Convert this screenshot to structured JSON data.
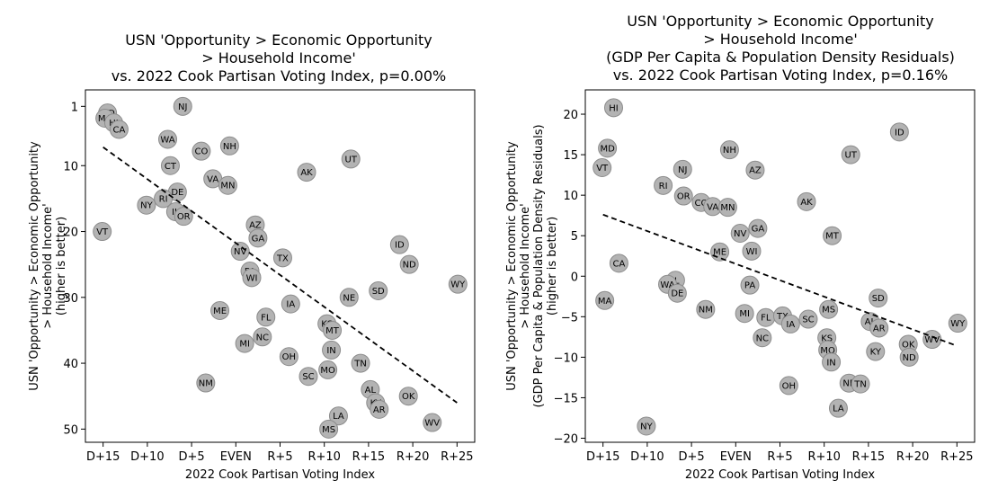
{
  "chart_data": [
    {
      "type": "scatter",
      "title_lines": [
        "USN 'Opportunity > Economic Opportunity",
        "> Household Income'",
        "vs. 2022 Cook Partisan Voting Index, p=0.00%"
      ],
      "xlabel": "2022 Cook Partisan Voting Index",
      "ylabel_lines": [
        "USN 'Opportunity > Economic Opportunity",
        "> Household Income'",
        "(higher is better)"
      ],
      "xlim": [
        -17,
        27
      ],
      "ylim": [
        52,
        -1.5
      ],
      "y_inverted": true,
      "xticks": [
        {
          "value": -15,
          "label": "D+15"
        },
        {
          "value": -10,
          "label": "D+10"
        },
        {
          "value": -5,
          "label": "D+5"
        },
        {
          "value": 0,
          "label": "EVEN"
        },
        {
          "value": 5,
          "label": "R+5"
        },
        {
          "value": 10,
          "label": "R+10"
        },
        {
          "value": 15,
          "label": "R+15"
        },
        {
          "value": 20,
          "label": "R+20"
        },
        {
          "value": 25,
          "label": "R+25"
        }
      ],
      "yticks": [
        {
          "value": 1,
          "label": "1"
        },
        {
          "value": 10,
          "label": "10"
        },
        {
          "value": 20,
          "label": "20"
        },
        {
          "value": 30,
          "label": "30"
        },
        {
          "value": 40,
          "label": "40"
        },
        {
          "value": 50,
          "label": "50"
        }
      ],
      "trendline": {
        "x": [
          -15,
          25
        ],
        "y": [
          7.2,
          46
        ]
      },
      "points": [
        {
          "label": "NJ",
          "x": -6,
          "y": 1
        },
        {
          "label": "MD",
          "x": -14.5,
          "y": 2
        },
        {
          "label": "MA",
          "x": -14.8,
          "y": 2.8
        },
        {
          "label": "HI",
          "x": -13.8,
          "y": 3.5
        },
        {
          "label": "CA",
          "x": -13.2,
          "y": 4.5
        },
        {
          "label": "WA",
          "x": -7.7,
          "y": 6
        },
        {
          "label": "NH",
          "x": -0.7,
          "y": 7
        },
        {
          "label": "CO",
          "x": -3.9,
          "y": 7.8
        },
        {
          "label": "UT",
          "x": 13,
          "y": 9
        },
        {
          "label": "CT",
          "x": -7.4,
          "y": 10
        },
        {
          "label": "AK",
          "x": 8,
          "y": 11
        },
        {
          "label": "VA",
          "x": -2.6,
          "y": 12
        },
        {
          "label": "MN",
          "x": -0.9,
          "y": 13
        },
        {
          "label": "DE",
          "x": -6.6,
          "y": 14
        },
        {
          "label": "RI",
          "x": -8.2,
          "y": 15
        },
        {
          "label": "NY",
          "x": -10.1,
          "y": 16
        },
        {
          "label": "IL",
          "x": -6.8,
          "y": 17
        },
        {
          "label": "OR",
          "x": -5.9,
          "y": 17.7
        },
        {
          "label": "AZ",
          "x": 2.2,
          "y": 19
        },
        {
          "label": "VT",
          "x": -15.1,
          "y": 20
        },
        {
          "label": "GA",
          "x": 2.5,
          "y": 21
        },
        {
          "label": "ID",
          "x": 18.5,
          "y": 22
        },
        {
          "label": "NV",
          "x": 0.5,
          "y": 23
        },
        {
          "label": "TX",
          "x": 5.3,
          "y": 24
        },
        {
          "label": "ND",
          "x": 19.6,
          "y": 25
        },
        {
          "label": "PA",
          "x": 1.6,
          "y": 26
        },
        {
          "label": "WI",
          "x": 1.8,
          "y": 27
        },
        {
          "label": "WY",
          "x": 25.1,
          "y": 28
        },
        {
          "label": "SD",
          "x": 16.1,
          "y": 29
        },
        {
          "label": "NE",
          "x": 12.8,
          "y": 30
        },
        {
          "label": "IA",
          "x": 6.2,
          "y": 31
        },
        {
          "label": "ME",
          "x": -1.8,
          "y": 32
        },
        {
          "label": "FL",
          "x": 3.4,
          "y": 33
        },
        {
          "label": "KS",
          "x": 10.3,
          "y": 34
        },
        {
          "label": "MT",
          "x": 10.9,
          "y": 35
        },
        {
          "label": "NC",
          "x": 3,
          "y": 36
        },
        {
          "label": "MI",
          "x": 1,
          "y": 37
        },
        {
          "label": "IN",
          "x": 10.8,
          "y": 38
        },
        {
          "label": "OH",
          "x": 6,
          "y": 39
        },
        {
          "label": "TN",
          "x": 14.1,
          "y": 40
        },
        {
          "label": "MO",
          "x": 10.4,
          "y": 41
        },
        {
          "label": "SC",
          "x": 8.2,
          "y": 42
        },
        {
          "label": "NM",
          "x": -3.4,
          "y": 43
        },
        {
          "label": "AL",
          "x": 15.2,
          "y": 44
        },
        {
          "label": "OK",
          "x": 19.5,
          "y": 45
        },
        {
          "label": "KY",
          "x": 15.8,
          "y": 46
        },
        {
          "label": "AR",
          "x": 16.2,
          "y": 47
        },
        {
          "label": "LA",
          "x": 11.6,
          "y": 48
        },
        {
          "label": "WV",
          "x": 22.2,
          "y": 49
        },
        {
          "label": "MS",
          "x": 10.5,
          "y": 50
        }
      ]
    },
    {
      "type": "scatter",
      "title_lines": [
        "USN 'Opportunity > Economic Opportunity",
        "> Household Income'",
        "(GDP Per Capita & Population Density Residuals)",
        "vs. 2022 Cook Partisan Voting Index, p=0.16%"
      ],
      "xlabel": "2022 Cook Partisan Voting Index",
      "ylabel_lines": [
        "USN 'Opportunity > Economic Opportunity",
        "> Household Income'",
        "(GDP Per Capita & Population Density Residuals)",
        "(higher is better)"
      ],
      "xlim": [
        -17,
        27
      ],
      "ylim": [
        -20.5,
        23
      ],
      "y_inverted": false,
      "xticks": [
        {
          "value": -15,
          "label": "D+15"
        },
        {
          "value": -10,
          "label": "D+10"
        },
        {
          "value": -5,
          "label": "D+5"
        },
        {
          "value": 0,
          "label": "EVEN"
        },
        {
          "value": 5,
          "label": "R+5"
        },
        {
          "value": 10,
          "label": "R+10"
        },
        {
          "value": 15,
          "label": "R+15"
        },
        {
          "value": 20,
          "label": "R+20"
        },
        {
          "value": 25,
          "label": "R+25"
        }
      ],
      "yticks": [
        {
          "value": 20,
          "label": "20"
        },
        {
          "value": 15,
          "label": "15"
        },
        {
          "value": 10,
          "label": "10"
        },
        {
          "value": 5,
          "label": "5"
        },
        {
          "value": 0,
          "label": "0"
        },
        {
          "value": -5,
          "label": "−5"
        },
        {
          "value": -10,
          "label": "−10"
        },
        {
          "value": -15,
          "label": "−15"
        },
        {
          "value": -20,
          "label": "−20"
        }
      ],
      "trendline": {
        "x": [
          -15,
          25
        ],
        "y": [
          7.6,
          -8.6
        ]
      },
      "points": [
        {
          "label": "HI",
          "x": -13.8,
          "y": 20.8
        },
        {
          "label": "ID",
          "x": 18.5,
          "y": 17.8
        },
        {
          "label": "MD",
          "x": -14.5,
          "y": 15.8
        },
        {
          "label": "NH",
          "x": -0.7,
          "y": 15.6
        },
        {
          "label": "UT",
          "x": 13,
          "y": 15
        },
        {
          "label": "VT",
          "x": -15.1,
          "y": 13.4
        },
        {
          "label": "NJ",
          "x": -6,
          "y": 13.2
        },
        {
          "label": "AZ",
          "x": 2.2,
          "y": 13.1
        },
        {
          "label": "RI",
          "x": -8.2,
          "y": 11.2
        },
        {
          "label": "OR",
          "x": -5.9,
          "y": 9.9
        },
        {
          "label": "CO",
          "x": -3.9,
          "y": 9.1
        },
        {
          "label": "AK",
          "x": 8,
          "y": 9.2
        },
        {
          "label": "VA",
          "x": -2.6,
          "y": 8.6
        },
        {
          "label": "MN",
          "x": -0.9,
          "y": 8.5
        },
        {
          "label": "GA",
          "x": 2.5,
          "y": 5.9
        },
        {
          "label": "NV",
          "x": 0.5,
          "y": 5.3
        },
        {
          "label": "MT",
          "x": 10.9,
          "y": 5
        },
        {
          "label": "ME",
          "x": -1.8,
          "y": 3
        },
        {
          "label": "WI",
          "x": 1.8,
          "y": 3.1
        },
        {
          "label": "CA",
          "x": -13.2,
          "y": 1.6
        },
        {
          "label": "IL",
          "x": -6.8,
          "y": -0.5
        },
        {
          "label": "WA",
          "x": -7.7,
          "y": -1
        },
        {
          "label": "DE",
          "x": -6.6,
          "y": -2.1
        },
        {
          "label": "PA",
          "x": 1.6,
          "y": -1.1
        },
        {
          "label": "SD",
          "x": 16.1,
          "y": -2.7
        },
        {
          "label": "MA",
          "x": -14.8,
          "y": -3
        },
        {
          "label": "ME2",
          "x": -1.8,
          "y": 3,
          "skip": true
        },
        {
          "label": "NM",
          "x": -3.4,
          "y": -4.1
        },
        {
          "label": "MS",
          "x": 10.5,
          "y": -4.1
        },
        {
          "label": "MI",
          "x": 1,
          "y": -4.6
        },
        {
          "label": "FL",
          "x": 3.4,
          "y": -5.1
        },
        {
          "label": "TX",
          "x": 5.3,
          "y": -4.9
        },
        {
          "label": "SC",
          "x": 8.2,
          "y": -5.3
        },
        {
          "label": "IA",
          "x": 6.2,
          "y": -5.9
        },
        {
          "label": "AL",
          "x": 15.2,
          "y": -5.6
        },
        {
          "label": "AR",
          "x": 16.2,
          "y": -6.4
        },
        {
          "label": "WY",
          "x": 25.1,
          "y": -5.8
        },
        {
          "label": "NC",
          "x": 3,
          "y": -7.6
        },
        {
          "label": "KS",
          "x": 10.3,
          "y": -7.6
        },
        {
          "label": "WV",
          "x": 22.2,
          "y": -7.8
        },
        {
          "label": "OK",
          "x": 19.5,
          "y": -8.4
        },
        {
          "label": "MO",
          "x": 10.4,
          "y": -9.1
        },
        {
          "label": "KY",
          "x": 15.8,
          "y": -9.3
        },
        {
          "label": "ND",
          "x": 19.6,
          "y": -10
        },
        {
          "label": "IN",
          "x": 10.8,
          "y": -10.6
        },
        {
          "label": "NE",
          "x": 12.8,
          "y": -13.2
        },
        {
          "label": "TN",
          "x": 14.1,
          "y": -13.3
        },
        {
          "label": "OH",
          "x": 6,
          "y": -13.5
        },
        {
          "label": "LA",
          "x": 11.6,
          "y": -16.3
        },
        {
          "label": "NY",
          "x": -10.1,
          "y": -18.5
        }
      ]
    }
  ]
}
